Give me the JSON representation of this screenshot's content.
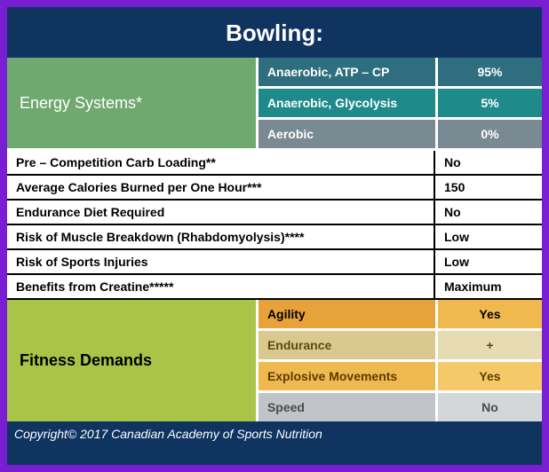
{
  "title": "Bowling:",
  "energy_systems": {
    "label": "Energy Systems*",
    "label_bg": "#6fa96f",
    "label_color": "#ffffff",
    "rows": [
      {
        "name": "Anaerobic, ATP – CP",
        "value": "95%",
        "bg": "#2e6e7e"
      },
      {
        "name": "Anaerobic, Glycolysis",
        "value": "5%",
        "bg": "#1f8a8a"
      },
      {
        "name": "Aerobic",
        "value": "0%",
        "bg": "#7a8a92"
      }
    ]
  },
  "info_rows": [
    {
      "label": "Pre – Competition Carb Loading**",
      "value": "No"
    },
    {
      "label": "Average Calories Burned per One Hour***",
      "value": "150"
    },
    {
      "label": "Endurance Diet Required",
      "value": "No"
    },
    {
      "label": "Risk of Muscle Breakdown (Rhabdomyolysis)****",
      "value": "Low"
    },
    {
      "label": "Risk of Sports Injuries",
      "value": "Low"
    },
    {
      "label": "Benefits from Creatine*****",
      "value": "Maximum"
    }
  ],
  "fitness_demands": {
    "label": "Fitness Demands",
    "label_bg": "#a8c548",
    "rows": [
      {
        "name": "Agility",
        "value": "Yes",
        "label_bg": "#e8a23a",
        "val_bg": "#f0b94f",
        "label_color": "#000000"
      },
      {
        "name": "Endurance",
        "value": "+",
        "label_bg": "#d9c98f",
        "val_bg": "#e6dbb3",
        "label_color": "#5a4a10"
      },
      {
        "name": "Explosive Movements",
        "value": "Yes",
        "label_bg": "#f0b94f",
        "val_bg": "#f5c968",
        "label_color": "#5a3a00"
      },
      {
        "name": "Speed",
        "value": "No",
        "label_bg": "#c0c4c8",
        "val_bg": "#d4d7da",
        "label_color": "#4a4a4a"
      }
    ]
  },
  "copyright": "Copyright© 2017 Canadian Academy of Sports Nutrition"
}
